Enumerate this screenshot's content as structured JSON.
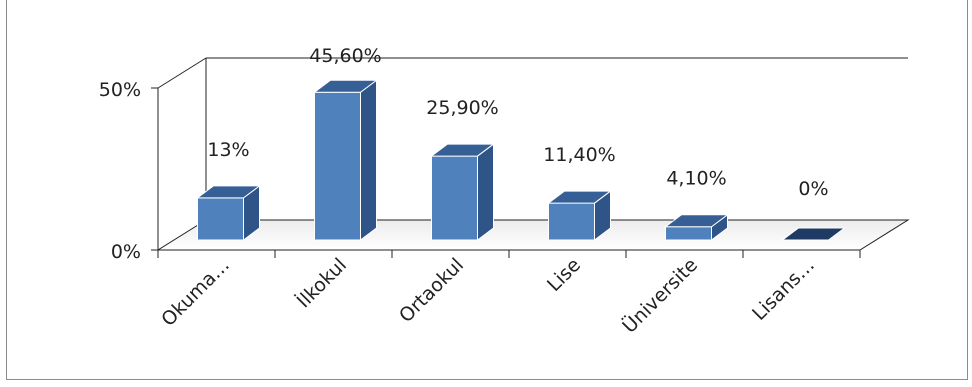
{
  "chart_data": {
    "type": "bar",
    "categories": [
      "Okuma…",
      "İlkokul",
      "Ortaokul",
      "Lise",
      "Üniversite",
      "Lisans…"
    ],
    "values": [
      13,
      45.6,
      25.9,
      11.4,
      4.1,
      0
    ],
    "data_labels": [
      "13%",
      "45,60%",
      "25,90%",
      "11,40%",
      "4,10%",
      "0%"
    ],
    "y_ticks": [
      "0%",
      "50%"
    ],
    "ylim": [
      0,
      50
    ],
    "grid": false,
    "colors": {
      "bar_front": "#4f81bd",
      "bar_side": "#2f5487",
      "bar_top": "#365f96",
      "last_bar": "#1f3b63"
    }
  }
}
